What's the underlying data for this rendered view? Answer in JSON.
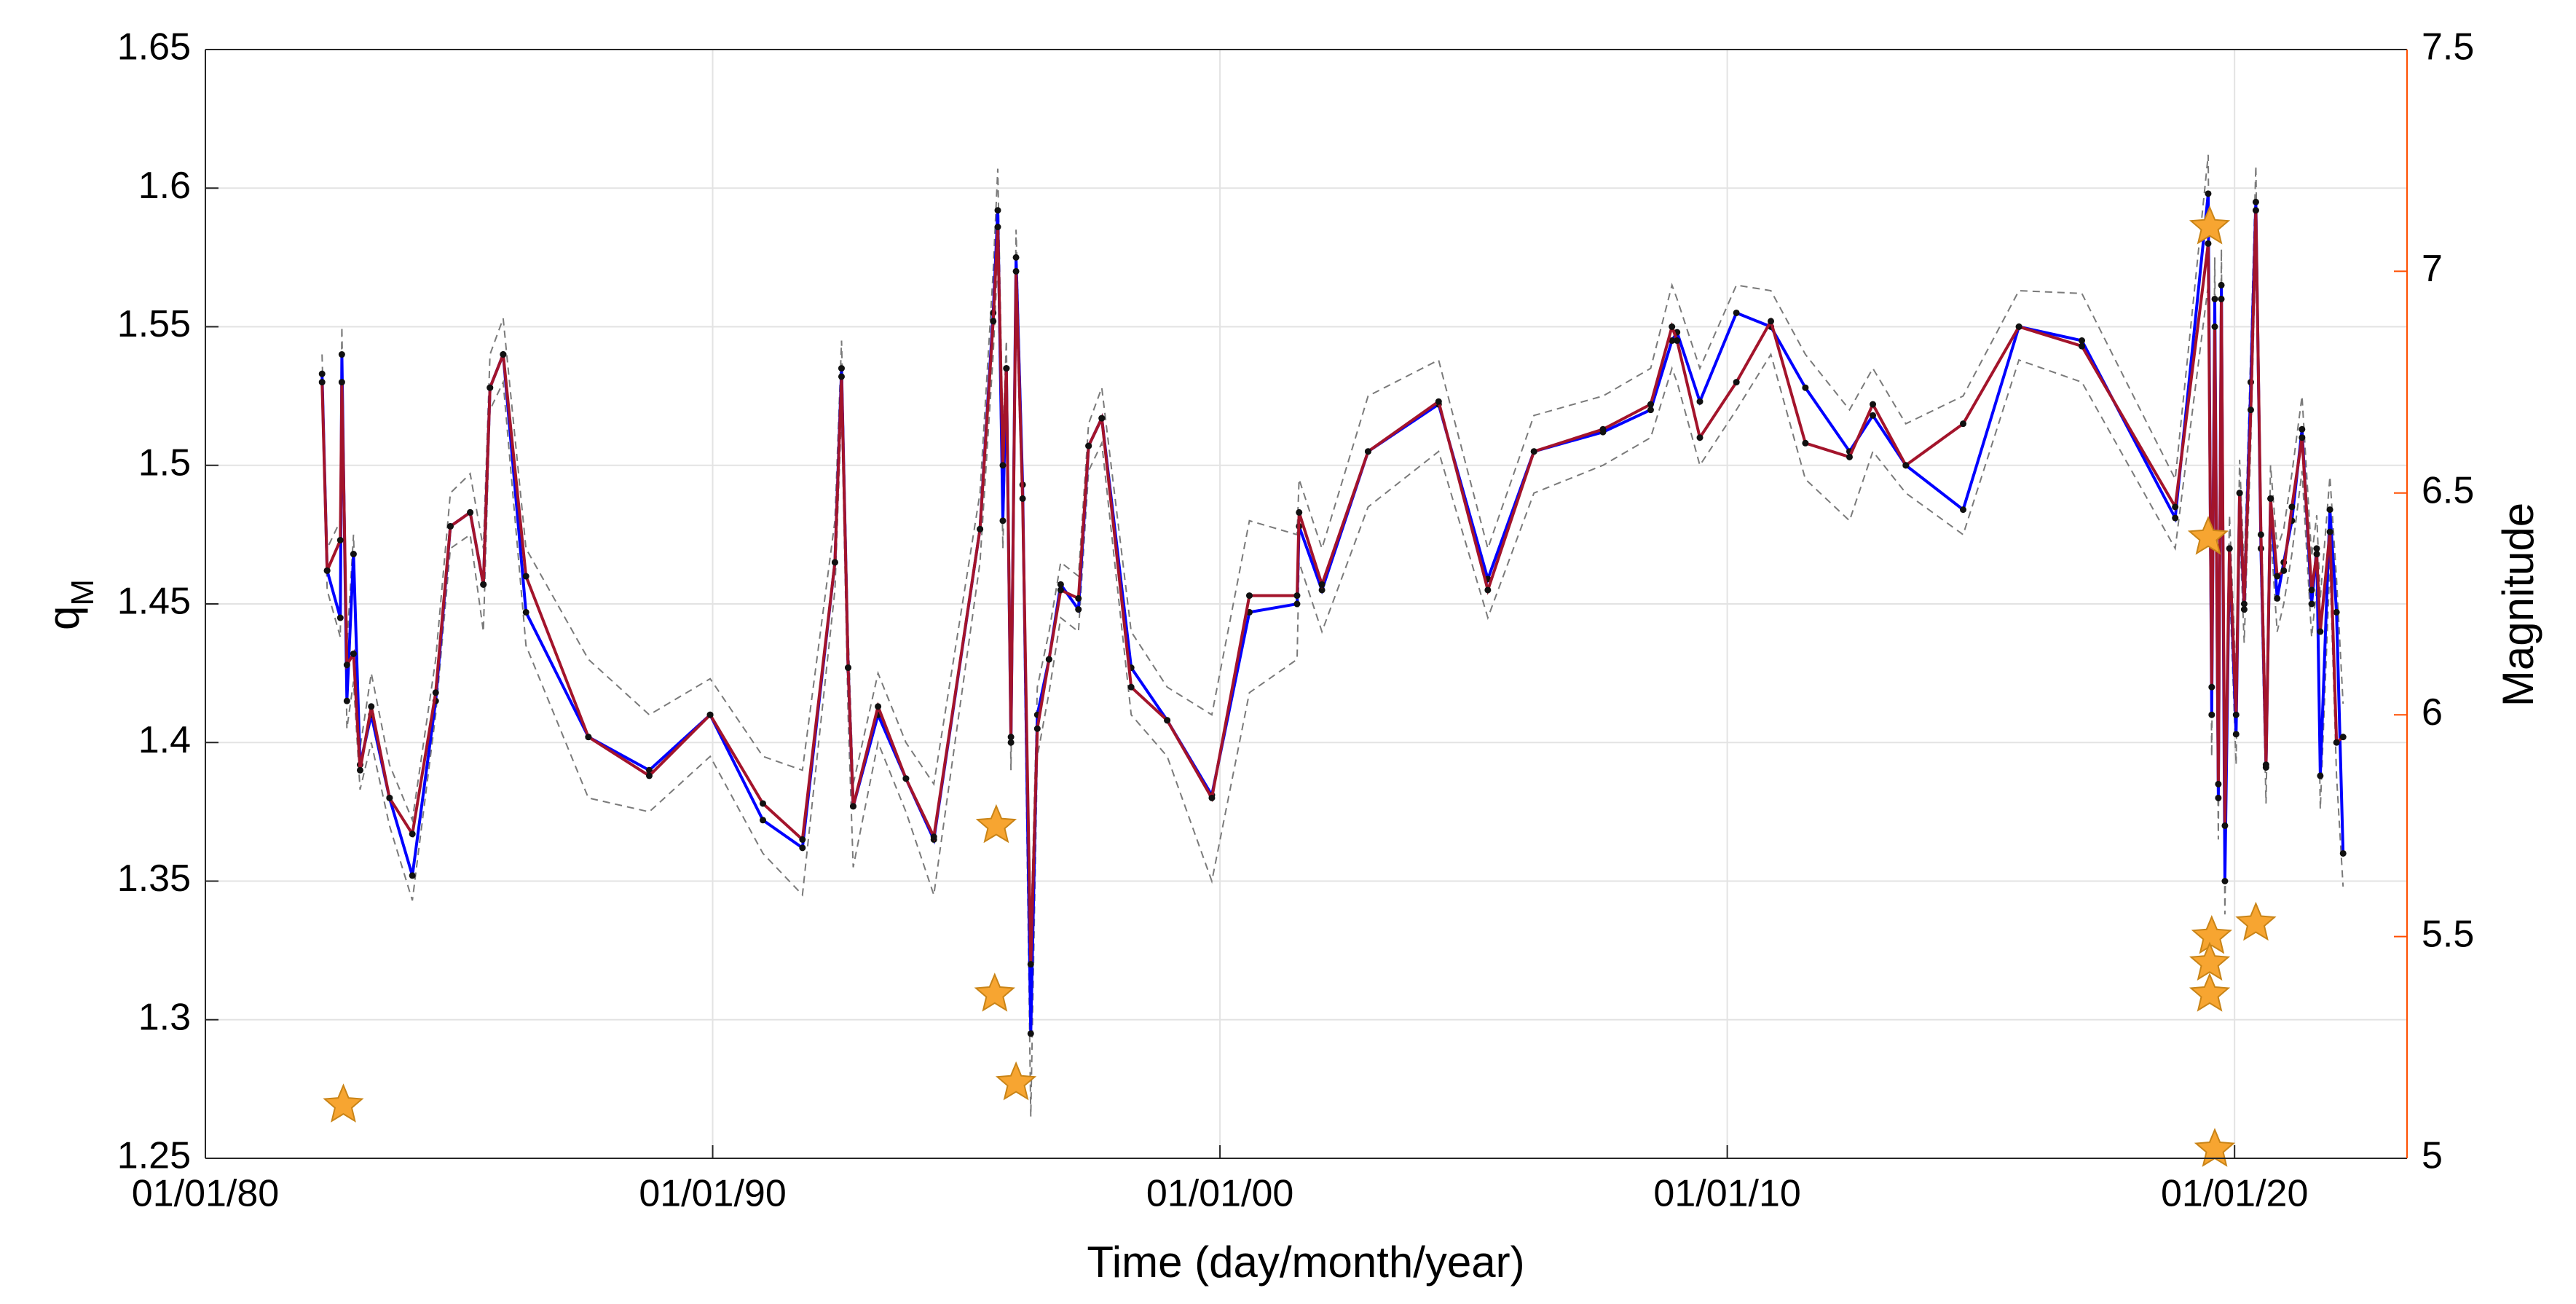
{
  "chart_data": {
    "type": "line",
    "xlabel": "Time (day/month/year)",
    "ylabel": {
      "text": "q",
      "subscript": "M"
    },
    "y2label": "Magnitude",
    "y2color": "#ff4f00",
    "grid": true,
    "xlim": [
      1980,
      2023.4
    ],
    "xticks": [
      {
        "value": 1980,
        "label": "01/01/80"
      },
      {
        "value": 1990,
        "label": "01/01/90"
      },
      {
        "value": 2000,
        "label": "01/01/00"
      },
      {
        "value": 2010,
        "label": "01/01/10"
      },
      {
        "value": 2020,
        "label": "01/01/20"
      }
    ],
    "ylim": [
      1.25,
      1.65
    ],
    "yticks": [
      1.25,
      1.3,
      1.35,
      1.4,
      1.45,
      1.5,
      1.55,
      1.6,
      1.65
    ],
    "y2lim": [
      5,
      7.5
    ],
    "y2ticks": [
      5,
      5.5,
      6,
      6.5,
      7,
      7.5
    ],
    "x": [
      1982.3,
      1982.4,
      1982.66,
      1982.69,
      1982.79,
      1982.92,
      1983.05,
      1983.27,
      1983.63,
      1984.08,
      1984.54,
      1984.83,
      1985.22,
      1985.48,
      1985.61,
      1985.87,
      1986.32,
      1987.55,
      1988.75,
      1989.95,
      1990.99,
      1991.77,
      1992.41,
      1992.54,
      1992.67,
      1992.77,
      1993.26,
      1993.81,
      1994.36,
      1995.27,
      1995.53,
      1995.62,
      1995.72,
      1995.79,
      1995.88,
      1995.98,
      1996.11,
      1996.27,
      1996.4,
      1996.63,
      1996.86,
      1997.21,
      1997.41,
      1997.67,
      1998.25,
      1998.96,
      1999.84,
      2000.58,
      2001.52,
      2001.56,
      2002.01,
      2002.92,
      2004.31,
      2005.28,
      2006.19,
      2007.55,
      2008.49,
      2008.91,
      2009.01,
      2009.46,
      2010.18,
      2010.86,
      2011.54,
      2012.41,
      2012.87,
      2013.52,
      2014.65,
      2015.75,
      2016.99,
      2018.83,
      2019.48,
      2019.55,
      2019.61,
      2019.68,
      2019.74,
      2019.81,
      2019.9,
      2020.03,
      2020.1,
      2020.19,
      2020.32,
      2020.42,
      2020.52,
      2020.62,
      2020.71,
      2020.84,
      2020.97,
      2021.13,
      2021.33,
      2021.52,
      2021.62,
      2021.69,
      2021.88,
      2022.01,
      2022.14
    ],
    "series": [
      {
        "color": "#7a7a7a",
        "dashed": true,
        "values": [
          1.54,
          1.47,
          1.48,
          1.55,
          1.435,
          1.475,
          1.398,
          1.425,
          1.392,
          1.372,
          1.43,
          1.49,
          1.497,
          1.47,
          1.54,
          1.553,
          1.47,
          1.43,
          1.41,
          1.423,
          1.395,
          1.39,
          1.48,
          1.545,
          1.44,
          1.385,
          1.425,
          1.4,
          1.385,
          1.49,
          1.57,
          1.607,
          1.51,
          1.545,
          1.41,
          1.585,
          1.5,
          1.33,
          1.42,
          1.44,
          1.465,
          1.46,
          1.515,
          1.528,
          1.44,
          1.42,
          1.41,
          1.48,
          1.475,
          1.495,
          1.47,
          1.525,
          1.538,
          1.47,
          1.518,
          1.525,
          1.535,
          1.565,
          1.56,
          1.535,
          1.565,
          1.563,
          1.54,
          1.52,
          1.535,
          1.515,
          1.525,
          1.563,
          1.562,
          1.495,
          1.612,
          1.435,
          1.575,
          1.398,
          1.578,
          1.385,
          1.482,
          1.422,
          1.502,
          1.462,
          1.542,
          1.608,
          1.487,
          1.405,
          1.5,
          1.47,
          1.477,
          1.497,
          1.525,
          1.467,
          1.482,
          1.452,
          1.496,
          1.459,
          1.414
        ]
      },
      {
        "color": "#7a7a7a",
        "dashed": true,
        "values": [
          1.525,
          1.455,
          1.438,
          1.522,
          1.405,
          1.422,
          1.383,
          1.4,
          1.37,
          1.343,
          1.41,
          1.47,
          1.475,
          1.44,
          1.52,
          1.53,
          1.435,
          1.38,
          1.375,
          1.395,
          1.36,
          1.345,
          1.455,
          1.52,
          1.41,
          1.355,
          1.4,
          1.375,
          1.345,
          1.465,
          1.54,
          1.575,
          1.47,
          1.525,
          1.39,
          1.56,
          1.48,
          1.265,
          1.395,
          1.418,
          1.445,
          1.44,
          1.498,
          1.508,
          1.41,
          1.395,
          1.35,
          1.418,
          1.43,
          1.465,
          1.44,
          1.485,
          1.505,
          1.445,
          1.49,
          1.5,
          1.51,
          1.535,
          1.53,
          1.5,
          1.52,
          1.54,
          1.495,
          1.48,
          1.505,
          1.49,
          1.475,
          1.538,
          1.53,
          1.47,
          1.565,
          1.395,
          1.54,
          1.365,
          1.548,
          1.338,
          1.458,
          1.392,
          1.478,
          1.436,
          1.508,
          1.58,
          1.458,
          1.378,
          1.476,
          1.44,
          1.45,
          1.468,
          1.498,
          1.438,
          1.456,
          1.376,
          1.464,
          1.388,
          1.348
        ]
      },
      {
        "color": "#0000ff",
        "markers": true,
        "values": [
          1.533,
          1.462,
          1.445,
          1.54,
          1.415,
          1.468,
          1.392,
          1.41,
          1.38,
          1.352,
          1.415,
          1.478,
          1.483,
          1.457,
          1.528,
          1.54,
          1.447,
          1.402,
          1.39,
          1.41,
          1.372,
          1.362,
          1.465,
          1.535,
          1.427,
          1.377,
          1.41,
          1.387,
          1.365,
          1.477,
          1.555,
          1.592,
          1.48,
          1.535,
          1.4,
          1.575,
          1.493,
          1.295,
          1.41,
          1.43,
          1.457,
          1.448,
          1.507,
          1.517,
          1.427,
          1.408,
          1.381,
          1.447,
          1.45,
          1.478,
          1.455,
          1.505,
          1.522,
          1.459,
          1.505,
          1.512,
          1.52,
          1.545,
          1.548,
          1.523,
          1.555,
          1.55,
          1.528,
          1.505,
          1.518,
          1.5,
          1.484,
          1.55,
          1.545,
          1.481,
          1.598,
          1.41,
          1.56,
          1.38,
          1.565,
          1.35,
          1.47,
          1.403,
          1.49,
          1.448,
          1.53,
          1.595,
          1.47,
          1.391,
          1.488,
          1.452,
          1.465,
          1.48,
          1.513,
          1.45,
          1.47,
          1.388,
          1.484,
          1.447,
          1.36
        ]
      },
      {
        "color": "#a3142b",
        "markers": true,
        "values": [
          1.53,
          1.462,
          1.473,
          1.53,
          1.428,
          1.432,
          1.39,
          1.413,
          1.38,
          1.367,
          1.418,
          1.478,
          1.483,
          1.457,
          1.528,
          1.54,
          1.46,
          1.402,
          1.388,
          1.41,
          1.378,
          1.365,
          1.465,
          1.532,
          1.427,
          1.377,
          1.413,
          1.387,
          1.366,
          1.477,
          1.552,
          1.586,
          1.5,
          1.535,
          1.402,
          1.57,
          1.488,
          1.32,
          1.405,
          1.43,
          1.455,
          1.452,
          1.507,
          1.517,
          1.42,
          1.408,
          1.38,
          1.453,
          1.453,
          1.483,
          1.457,
          1.505,
          1.523,
          1.455,
          1.505,
          1.513,
          1.522,
          1.55,
          1.545,
          1.51,
          1.53,
          1.552,
          1.508,
          1.503,
          1.522,
          1.5,
          1.515,
          1.55,
          1.543,
          1.485,
          1.58,
          1.42,
          1.55,
          1.385,
          1.56,
          1.37,
          1.47,
          1.41,
          1.49,
          1.45,
          1.52,
          1.592,
          1.475,
          1.392,
          1.488,
          1.46,
          1.462,
          1.485,
          1.51,
          1.455,
          1.468,
          1.44,
          1.476,
          1.4,
          1.402
        ]
      },
      {
        "type": "scatter",
        "marker": "star",
        "axis": "y2",
        "color": "#f7a531",
        "x": [
          1982.72,
          1995.59,
          1995.56,
          1995.98,
          2019.51,
          2019.48,
          2019.55,
          2019.51,
          2019.51,
          2019.61,
          2020.42
        ],
        "values": [
          5.12,
          5.75,
          5.37,
          5.17,
          7.1,
          6.4,
          5.5,
          5.44,
          5.37,
          5.02,
          5.53
        ]
      }
    ]
  }
}
